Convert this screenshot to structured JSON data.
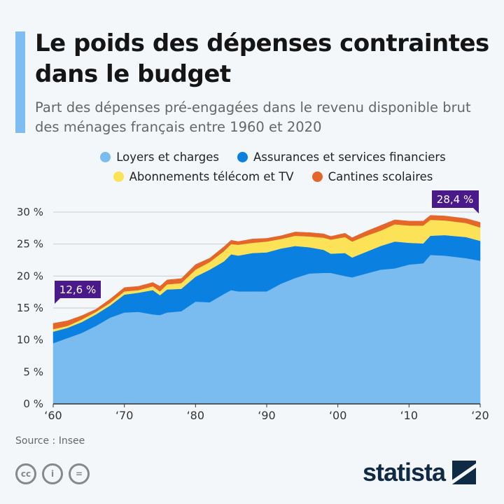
{
  "title": "Le poids des dépenses contraintes dans le budget",
  "subtitle": "Part des dépenses pré-engagées dans le revenu disponible brut des ménages français entre 1960 et 2020",
  "source": "Source : Insee",
  "brand": "statista",
  "license_icons": [
    "cc-icon",
    "attribution-icon",
    "no-derivatives-icon"
  ],
  "chart_data": {
    "type": "area",
    "stacked": true,
    "title": "",
    "xlabel": "",
    "ylabel": "",
    "ylim": [
      0,
      30
    ],
    "yticks": [
      "0 %",
      "5 %",
      "10 %",
      "15 %",
      "20 %",
      "25 %",
      "30 %"
    ],
    "ytick_values": [
      0,
      5,
      10,
      15,
      20,
      25,
      30
    ],
    "xticks": [
      "‘60",
      "‘70",
      "‘80",
      "‘90",
      "‘00",
      "‘10",
      "‘20"
    ],
    "xtick_values": [
      1960,
      1970,
      1980,
      1990,
      2000,
      2010,
      2020
    ],
    "xlim": [
      1960,
      2020
    ],
    "grid": true,
    "legend_placement": "top",
    "x": [
      1960,
      1962,
      1964,
      1966,
      1968,
      1970,
      1972,
      1974,
      1975,
      1976,
      1978,
      1980,
      1982,
      1984,
      1985,
      1986,
      1988,
      1990,
      1992,
      1994,
      1996,
      1998,
      1999,
      2001,
      2002,
      2004,
      2006,
      2008,
      2010,
      2012,
      2013,
      2015,
      2018,
      2020
    ],
    "series": [
      {
        "name": "Loyers et charges",
        "color": "#7abbf0",
        "values": [
          9.5,
          10.3,
          11.1,
          12.2,
          13.5,
          14.3,
          14.4,
          14.0,
          13.9,
          14.3,
          14.5,
          16.0,
          15.9,
          17.2,
          17.8,
          17.6,
          17.6,
          17.6,
          18.8,
          19.7,
          20.4,
          20.5,
          20.5,
          20.0,
          19.8,
          20.4,
          21.0,
          21.2,
          21.8,
          22.0,
          23.3,
          23.2,
          22.8,
          22.4
        ]
      },
      {
        "name": "Assurances et services financiers",
        "color": "#0a80e0",
        "values": [
          1.8,
          1.6,
          1.7,
          1.8,
          1.9,
          2.8,
          3.0,
          3.8,
          3.1,
          3.6,
          3.5,
          3.9,
          5.1,
          5.1,
          5.6,
          5.6,
          6.0,
          6.1,
          5.5,
          5.0,
          4.1,
          3.6,
          3.0,
          3.6,
          3.1,
          3.4,
          3.7,
          4.2,
          3.4,
          3.1,
          3.0,
          3.2,
          3.3,
          3.1
        ]
      },
      {
        "name": "Abonnements télécom et TV",
        "color": "#fbe257",
        "values": [
          0.4,
          0.3,
          0.4,
          0.4,
          0.4,
          0.5,
          0.4,
          0.6,
          0.6,
          0.8,
          0.9,
          1.1,
          1.2,
          1.6,
          1.6,
          1.7,
          1.6,
          1.7,
          1.5,
          1.6,
          1.7,
          1.9,
          2.2,
          2.5,
          2.5,
          2.5,
          2.4,
          2.7,
          2.7,
          2.8,
          2.5,
          2.3,
          2.2,
          2.1
        ]
      },
      {
        "name": "Cantines scolaires",
        "color": "#e4662b",
        "values": [
          0.9,
          0.8,
          0.6,
          0.4,
          0.6,
          0.6,
          0.6,
          0.6,
          0.8,
          0.7,
          0.7,
          0.8,
          0.6,
          0.7,
          0.6,
          0.5,
          0.6,
          0.5,
          0.5,
          0.6,
          0.6,
          0.6,
          0.5,
          0.6,
          0.6,
          0.7,
          0.8,
          0.7,
          0.7,
          0.7,
          0.7,
          0.7,
          0.7,
          0.8
        ]
      }
    ],
    "annotations": [
      {
        "x": 1960,
        "label": "12,6 %"
      },
      {
        "x": 2020,
        "label": "28,4 %"
      }
    ],
    "annotation_color": "#4b1a8a"
  }
}
